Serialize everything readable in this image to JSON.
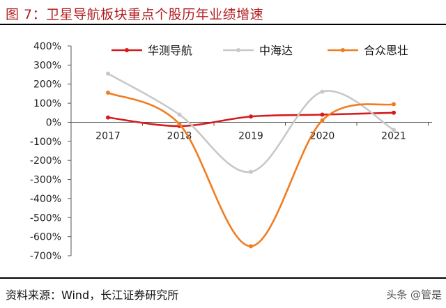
{
  "title": "图 7：卫星导航板块重点个股历年业绩增速",
  "source": "资料来源：Wind，长江证券研究所",
  "watermark": "头条 @管是",
  "chart_data": {
    "type": "line",
    "categories": [
      "2017",
      "2018",
      "2019",
      "2020",
      "2021"
    ],
    "y_ticks": [
      "400%",
      "300%",
      "200%",
      "100%",
      "0%",
      "-100%",
      "-200%",
      "-300%",
      "-400%",
      "-500%",
      "-600%",
      "-700%"
    ],
    "ylim": [
      -700,
      400
    ],
    "legend_position": "top",
    "series": [
      {
        "name": "华测导航",
        "color": "#d7191c",
        "values": [
          25,
          -20,
          30,
          40,
          50
        ]
      },
      {
        "name": "中海达",
        "color": "#c8c8c8",
        "values": [
          255,
          40,
          -260,
          160,
          -40
        ]
      },
      {
        "name": "合众思壮",
        "color": "#f07c20",
        "values": [
          155,
          -10,
          -650,
          10,
          95
        ]
      }
    ]
  }
}
